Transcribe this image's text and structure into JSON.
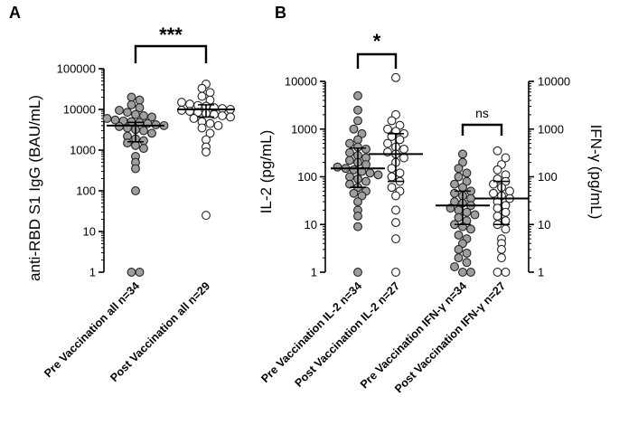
{
  "chart_data": [
    {
      "panel": "A",
      "type": "scatter",
      "ylabel": "anti-RBD S1 IgG (BAU/mL)",
      "yscale": "log",
      "ylim": [
        1,
        100000
      ],
      "yticks": [
        "1",
        "10",
        "100",
        "1000",
        "10000",
        "100000"
      ],
      "categories": [
        "Pre Vaccination all n=34",
        "Post Vaccination all n=29"
      ],
      "series": [
        {
          "color": "#9e9e9e",
          "median": 4000,
          "q1": 1600,
          "q3": 4800,
          "values": [
            20000,
            17000,
            13000,
            11000,
            9500,
            8500,
            7500,
            7000,
            6500,
            6000,
            5500,
            5200,
            5000,
            4800,
            4500,
            4200,
            4000,
            3800,
            3500,
            3200,
            3000,
            2600,
            2200,
            1900,
            1700,
            1500,
            1300,
            1100,
            700,
            500,
            350,
            100,
            1,
            1
          ]
        },
        {
          "color": "#ffffff",
          "median": 10000,
          "q1": 6500,
          "q3": 13000,
          "values": [
            42000,
            33000,
            26000,
            21000,
            17000,
            15000,
            13500,
            12500,
            12000,
            11000,
            10500,
            10000,
            9500,
            9000,
            8500,
            8000,
            7500,
            7000,
            6500,
            6000,
            5000,
            4500,
            4000,
            3500,
            2600,
            1800,
            1200,
            900,
            25
          ]
        }
      ],
      "significance": [
        {
          "between": [
            0,
            1
          ],
          "label": "***"
        }
      ]
    },
    {
      "panel": "B",
      "type": "scatter",
      "ylabel": "IL-2 (pg/mL)",
      "ylabel_right": "IFN-γ  (pg/mL)",
      "yscale": "log",
      "ylim": [
        1,
        10000
      ],
      "yticks": [
        "1",
        "10",
        "100",
        "1000",
        "10000"
      ],
      "categories": [
        "Pre Vaccination IL-2 n=34",
        "Post Vaccination IL-2 n=27",
        "Pre Vaccination IFN-γ n=34",
        "Post Vaccination IFN-γ  n=27"
      ],
      "series": [
        {
          "color": "#9e9e9e",
          "median": 150,
          "q1": 60,
          "q3": 400,
          "values": [
            5000,
            2500,
            1500,
            1000,
            800,
            600,
            500,
            420,
            380,
            320,
            280,
            250,
            220,
            200,
            180,
            160,
            150,
            140,
            130,
            120,
            110,
            100,
            90,
            80,
            70,
            60,
            50,
            45,
            40,
            30,
            20,
            15,
            9,
            1
          ]
        },
        {
          "color": "#ffffff",
          "median": 300,
          "q1": 80,
          "q3": 800,
          "values": [
            12000,
            2000,
            1500,
            1200,
            1000,
            900,
            800,
            700,
            600,
            500,
            420,
            380,
            330,
            300,
            250,
            200,
            150,
            120,
            100,
            80,
            60,
            50,
            40,
            20,
            11,
            5,
            1
          ]
        },
        {
          "color": "#9e9e9e",
          "median": 25,
          "q1": 10,
          "q3": 50,
          "values": [
            300,
            200,
            150,
            120,
            100,
            80,
            70,
            60,
            50,
            45,
            40,
            35,
            30,
            28,
            25,
            22,
            20,
            18,
            16,
            14,
            12,
            10,
            9,
            8,
            6,
            5,
            4,
            3,
            2.5,
            2,
            1.6,
            1.3,
            1,
            1
          ]
        },
        {
          "color": "#ffffff",
          "median": 35,
          "q1": 10,
          "q3": 80,
          "values": [
            350,
            250,
            180,
            140,
            110,
            90,
            80,
            70,
            60,
            50,
            45,
            40,
            35,
            30,
            25,
            22,
            18,
            15,
            12,
            10,
            8,
            5,
            4,
            3,
            2,
            1,
            1
          ]
        }
      ],
      "significance": [
        {
          "between": [
            0,
            1
          ],
          "label": "*"
        },
        {
          "between": [
            2,
            3
          ],
          "label": "ns"
        }
      ]
    }
  ]
}
